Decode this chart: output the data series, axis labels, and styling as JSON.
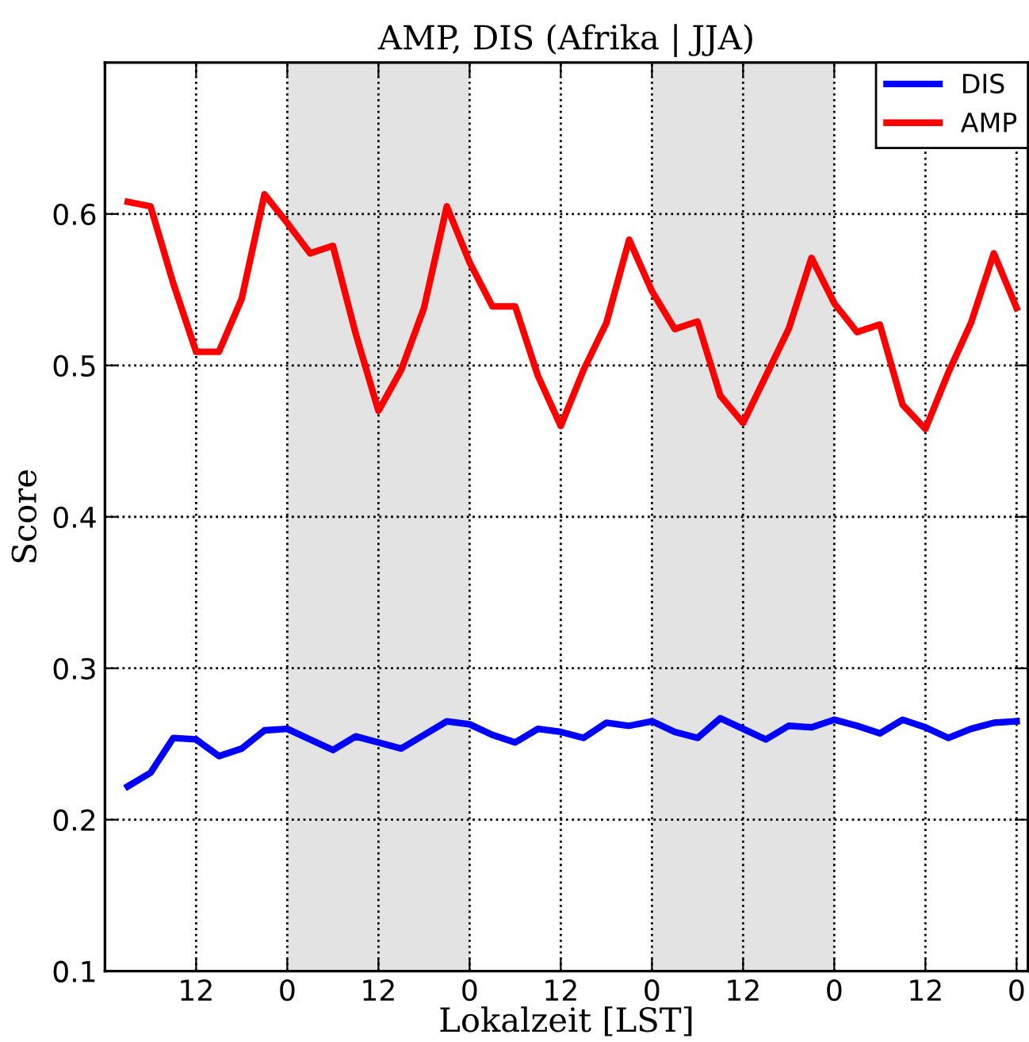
{
  "chart_data": {
    "type": "line",
    "title": "AMP, DIS (Afrika | JJA)",
    "xlabel": "Lokalzeit [LST]",
    "ylabel": "Score",
    "categories": [
      null,
      null,
      null,
      "12",
      null,
      null,
      null,
      "0",
      null,
      null,
      null,
      "12",
      null,
      null,
      null,
      "0",
      null,
      null,
      null,
      "12",
      null,
      null,
      null,
      "0",
      null,
      null,
      null,
      "12",
      null,
      null,
      null,
      "0",
      null,
      null,
      null,
      "12",
      null,
      null,
      null,
      "0"
    ],
    "series": [
      {
        "name": "DIS",
        "color": "#0000ff",
        "values": [
          0.222,
          0.231,
          0.254,
          0.253,
          0.242,
          0.247,
          0.259,
          0.26,
          0.253,
          0.246,
          0.255,
          0.251,
          0.247,
          0.256,
          0.265,
          0.263,
          0.256,
          0.251,
          0.26,
          0.258,
          0.254,
          0.264,
          0.262,
          0.265,
          0.258,
          0.254,
          0.267,
          0.26,
          0.253,
          0.262,
          0.261,
          0.266,
          0.262,
          0.257,
          0.266,
          0.261,
          0.254,
          0.26,
          0.264,
          0.265
        ]
      },
      {
        "name": "AMP",
        "color": "#ff0000",
        "values": [
          0.608,
          0.605,
          0.554,
          0.509,
          0.509,
          0.544,
          0.613,
          0.594,
          0.574,
          0.579,
          0.521,
          0.47,
          0.497,
          0.538,
          0.605,
          0.568,
          0.539,
          0.539,
          0.493,
          0.46,
          0.497,
          0.528,
          0.583,
          0.549,
          0.524,
          0.529,
          0.48,
          0.462,
          0.493,
          0.524,
          0.571,
          0.541,
          0.522,
          0.527,
          0.474,
          0.458,
          0.495,
          0.528,
          0.574,
          0.538
        ]
      }
    ],
    "ylim": [
      0.1,
      0.7
    ],
    "yticks": [
      0.1,
      0.2,
      0.3,
      0.4,
      0.5,
      0.6
    ],
    "grid": true,
    "legend": "top right",
    "line_style": "solid"
  }
}
